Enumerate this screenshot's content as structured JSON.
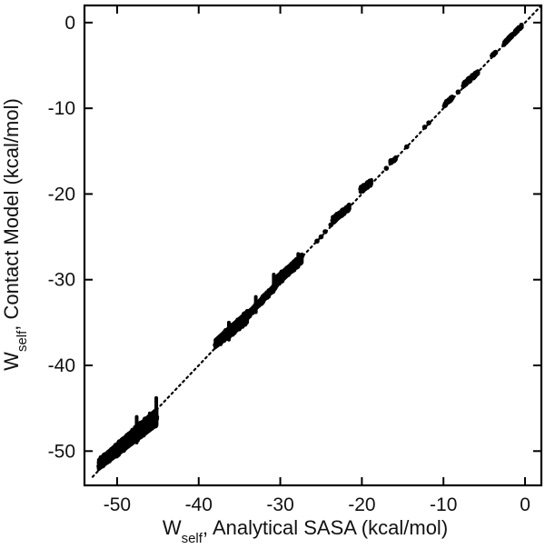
{
  "chart_data": {
    "type": "scatter",
    "title": "",
    "xlabel": {
      "main": "W",
      "sub": "self",
      "rest": ", Analytical SASA (kcal/mol)"
    },
    "ylabel": {
      "main": "W",
      "sub": "self",
      "rest": ", Contact Model (kcal/mol)"
    },
    "xlim": [
      -54,
      2
    ],
    "ylim": [
      -54,
      2
    ],
    "xticks": [
      -50,
      -40,
      -30,
      -20,
      -10,
      0
    ],
    "yticks": [
      0,
      -10,
      -20,
      -30,
      -40,
      -50
    ],
    "xtick_labels": [
      "-50",
      "-40",
      "-30",
      "-20",
      "-10",
      "0"
    ],
    "ytick_labels": [
      "0",
      "-10",
      "-20",
      "-30",
      "-40",
      "-50"
    ],
    "grid": false,
    "legend": "none",
    "reference_line": {
      "style": "dotted",
      "points": [
        [
          -53,
          -53
        ],
        [
          2,
          2
        ]
      ]
    },
    "point_color": "#000000",
    "clusters": [
      {
        "x": [
          -52.3,
          -45.1
        ],
        "y_low": [
          -52.2,
          -47.0
        ],
        "y_high": [
          -51.0,
          -45.0
        ]
      },
      {
        "x": [
          -38.0,
          -34.0
        ],
        "y_low": [
          -38.0,
          -35.0
        ],
        "y_high": [
          -37.0,
          -33.6
        ]
      },
      {
        "x": [
          -34.0,
          -30.5
        ],
        "y_low": [
          -34.5,
          -31.0
        ],
        "y_high": [
          -33.8,
          -30.3
        ]
      },
      {
        "x": [
          -30.5,
          -27.3
        ],
        "y_low": [
          -30.8,
          -28.0
        ],
        "y_high": [
          -29.6,
          -27.0
        ]
      },
      {
        "x": [
          -23.6,
          -21.5
        ],
        "y_low": [
          -23.5,
          -21.8
        ],
        "y_high": [
          -22.7,
          -21.2
        ]
      },
      {
        "x": [
          -20.2,
          -18.8
        ],
        "y_low": [
          -19.8,
          -18.9
        ],
        "y_high": [
          -19.2,
          -18.3
        ]
      },
      {
        "x": [
          -16.5,
          -15.8
        ],
        "y_low": [
          -16.4,
          -16.0
        ],
        "y_high": [
          -16.1,
          -15.7
        ]
      },
      {
        "x": [
          -9.9,
          -8.9
        ],
        "y_low": [
          -9.8,
          -8.9
        ],
        "y_high": [
          -9.4,
          -8.6
        ]
      },
      {
        "x": [
          -7.6,
          -5.8
        ],
        "y_low": [
          -7.6,
          -6.0
        ],
        "y_high": [
          -7.0,
          -5.6
        ]
      },
      {
        "x": [
          -4.1,
          -3.6
        ],
        "y_low": [
          -4.0,
          -3.6
        ],
        "y_high": [
          -3.8,
          -3.4
        ]
      },
      {
        "x": [
          -2.6,
          -0.4
        ],
        "y_low": [
          -2.6,
          -0.5
        ],
        "y_high": [
          -2.3,
          -0.2
        ]
      }
    ],
    "spikes": [
      {
        "x": -45.2,
        "y": [
          -47.0,
          -43.8
        ]
      },
      {
        "x": -46.0,
        "y": [
          -47.5,
          -45.6
        ]
      },
      {
        "x": -47.6,
        "y": [
          -49.0,
          -46.0
        ]
      },
      {
        "x": -36.3,
        "y": [
          -37.0,
          -35.0
        ]
      },
      {
        "x": -33.0,
        "y": [
          -33.8,
          -32.0
        ]
      },
      {
        "x": -30.8,
        "y": [
          -30.8,
          -29.4
        ]
      },
      {
        "x": -27.8,
        "y": [
          -28.5,
          -27.0
        ]
      }
    ],
    "points": [
      [
        -25.5,
        -25.5
      ],
      [
        -25.0,
        -25.0
      ],
      [
        -24.5,
        -24.4
      ],
      [
        -23.8,
        -23.6
      ],
      [
        -17.0,
        -17.0
      ],
      [
        -16.2,
        -16.1
      ],
      [
        -14.5,
        -14.5
      ],
      [
        -11.8,
        -11.7
      ],
      [
        -12.3,
        -12.2
      ],
      [
        -8.2,
        -8.1
      ]
    ]
  }
}
